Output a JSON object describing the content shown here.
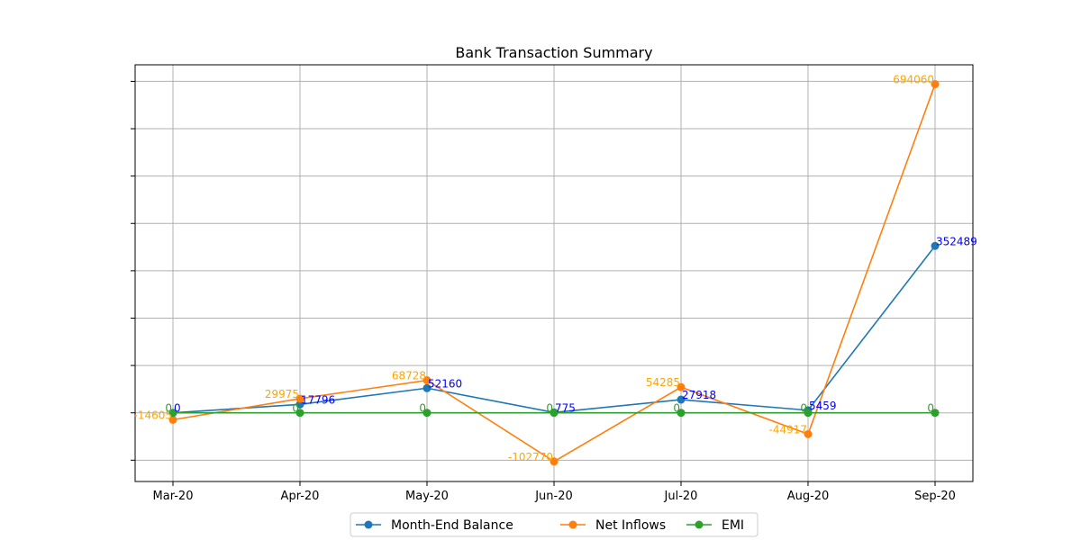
{
  "chart_data": {
    "type": "line",
    "title": "Bank Transaction Summary",
    "xlabel": "",
    "ylabel": "",
    "categories": [
      "Mar-20",
      "Apr-20",
      "May-20",
      "Jun-20",
      "Jul-20",
      "Aug-20",
      "Sep-20"
    ],
    "ylim": [
      -145000,
      735000
    ],
    "y_ticks": [
      -100000,
      0,
      100000,
      200000,
      300000,
      400000,
      500000,
      600000,
      700000
    ],
    "y_tick_labels_visible": false,
    "grid": true,
    "legend": "bottom-center",
    "series": [
      {
        "name": "Month-End Balance",
        "color": "#1f77b4",
        "label_color": "#0000ff",
        "values": [
          0,
          17796,
          52160,
          775,
          27918,
          5459,
          352489
        ],
        "labels": [
          "0",
          "17796",
          "52160",
          "775",
          "27918",
          "5459",
          "352489"
        ],
        "label_anchor": "start"
      },
      {
        "name": "Net Inflows",
        "color": "#ff7f0e",
        "label_color": "#ffa500",
        "values": [
          -14605,
          29975,
          68728,
          -102770,
          54285,
          -44917,
          694060
        ],
        "labels": [
          "-14605",
          "29975",
          "68728",
          "-102770",
          "54285",
          "-44917",
          "694060"
        ],
        "label_anchor": "end"
      },
      {
        "name": "EMI",
        "color": "#2ca02c",
        "label_color": "#2ca02c",
        "values": [
          0,
          0,
          0,
          0,
          0,
          0,
          0
        ],
        "labels": [
          "0",
          "0",
          "0",
          "0",
          "0",
          "0",
          "0"
        ],
        "label_anchor": "end"
      }
    ]
  }
}
